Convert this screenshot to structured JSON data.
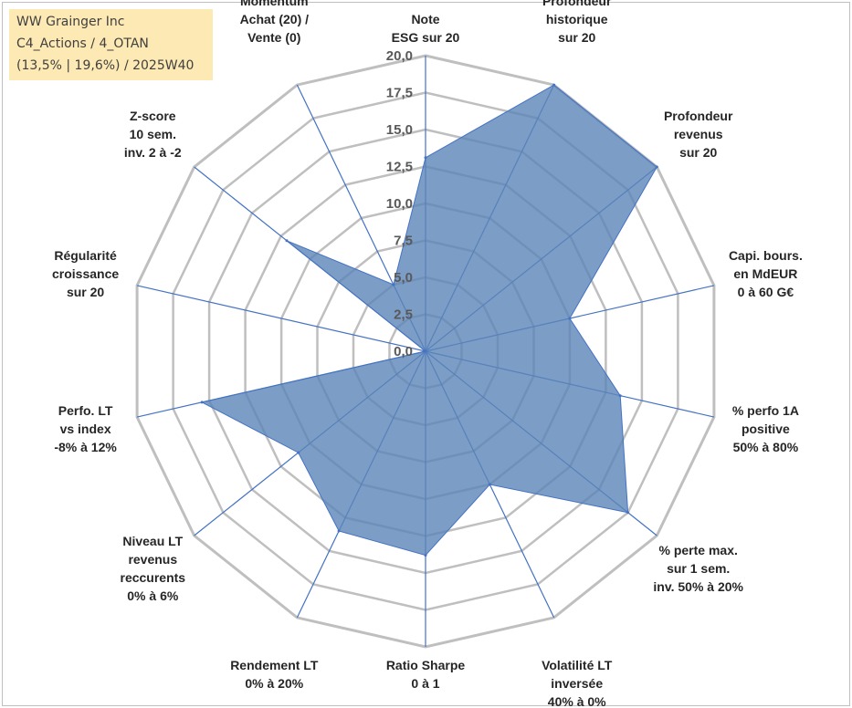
{
  "info_box": {
    "line1": "WW Grainger Inc",
    "line2": "C4_Actions / 4_OTAN",
    "line3": "(13,5% | 19,6%) / 2025W40"
  },
  "colors": {
    "grid": "#bfbfbf",
    "spoke": "#4472c4",
    "fill": "#5b84b8",
    "fill_opacity": 0.8
  },
  "chart_data": {
    "type": "radar",
    "title": "",
    "range": [
      0,
      20
    ],
    "rings": 8,
    "tick_labels": [
      "0,0",
      "2,5",
      "5,0",
      "7,5",
      "10,0",
      "12,5",
      "15,0",
      "17,5",
      "20,0"
    ],
    "categories": [
      [
        "Note",
        "ESG sur 20"
      ],
      [
        "Profondeur",
        "historique",
        "sur 20"
      ],
      [
        "Profondeur",
        "revenus",
        "sur 20"
      ],
      [
        "Capi. bours.",
        "en MdEUR",
        "0 à 60 G€"
      ],
      [
        "% perfo 1A",
        "positive",
        "50% à 80%"
      ],
      [
        "% perte max.",
        "sur 1 sem.",
        "inv. 50% à 20%"
      ],
      [
        "Volatilité LT",
        "inversée",
        "40% à 0%"
      ],
      [
        "Ratio Sharpe",
        "0 à 1"
      ],
      [
        "Rendement LT",
        "0% à 20%"
      ],
      [
        "Niveau LT",
        "revenus",
        "reccurents",
        "0% à 6%"
      ],
      [
        "Perfo. LT",
        "vs index",
        "-8% à 12%"
      ],
      [
        "Régularité",
        "croissance",
        "sur 20"
      ],
      [
        "Z-score",
        "10 sem.",
        "inv. 2 à -2"
      ],
      [
        "Momentum",
        "Achat (20) /",
        "Vente (0)"
      ]
    ],
    "series": [
      {
        "name": "WW Grainger Inc",
        "values": [
          13.1,
          20.0,
          20.0,
          10.0,
          13.5,
          17.5,
          10.0,
          13.8,
          13.5,
          11.0,
          15.5,
          0.0,
          12.0,
          5.0
        ]
      }
    ]
  }
}
